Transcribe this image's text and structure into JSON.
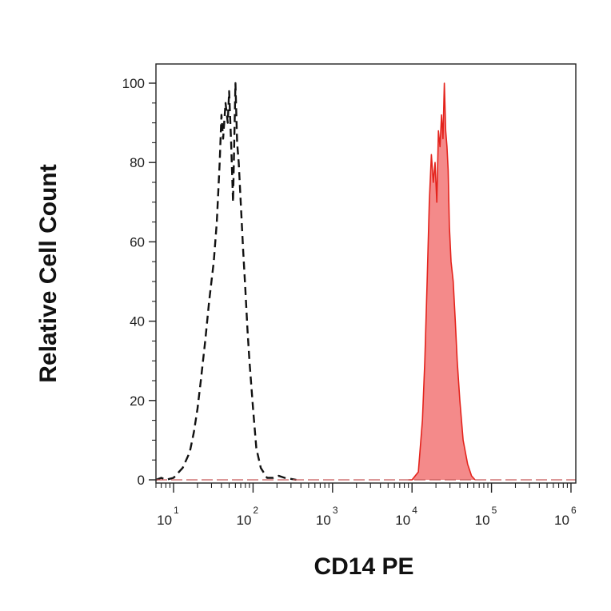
{
  "chart_data": {
    "type": "area",
    "xlabel": "CD14 PE",
    "ylabel": "Relative Cell Count",
    "x_scale": "log",
    "xlim": [
      6,
      1150000
    ],
    "ylim": [
      0,
      100
    ],
    "grid": false,
    "y_ticks": [
      {
        "value": 0,
        "label": "0"
      },
      {
        "value": 20,
        "label": "20"
      },
      {
        "value": 40,
        "label": "40"
      },
      {
        "value": 60,
        "label": "60"
      },
      {
        "value": 80,
        "label": "80"
      },
      {
        "value": 100,
        "label": "100"
      }
    ],
    "x_ticks": [
      {
        "value": 10,
        "base": "10",
        "exp": "1"
      },
      {
        "value": 100,
        "base": "10",
        "exp": "2"
      },
      {
        "value": 1000,
        "base": "10",
        "exp": "3"
      },
      {
        "value": 10000,
        "base": "10",
        "exp": "4"
      },
      {
        "value": 100000,
        "base": "10",
        "exp": "5"
      },
      {
        "value": 1000000,
        "base": "10",
        "exp": "6"
      }
    ],
    "series": [
      {
        "style": "dashed",
        "color": "#111111",
        "x": [
          6,
          7,
          8,
          10,
          13,
          16,
          18,
          20,
          22,
          25,
          28,
          32,
          35,
          38,
          40,
          42,
          45,
          48,
          50,
          53,
          56,
          60,
          63,
          66,
          70,
          75,
          80,
          85,
          90,
          100,
          110,
          125,
          150,
          180,
          210,
          250,
          350
        ],
        "y": [
          0,
          0.5,
          0,
          0.5,
          3,
          7,
          12,
          18,
          25,
          35,
          45,
          55,
          65,
          80,
          92,
          86,
          95,
          90,
          98,
          85,
          70,
          100,
          85,
          80,
          70,
          58,
          48,
          38,
          30,
          18,
          8,
          3,
          0.5,
          0.5,
          1,
          0.5,
          0
        ]
      },
      {
        "style": "filled",
        "color": "#e4231c",
        "fill": "#f48a8a",
        "x": [
          9000,
          10000,
          12000,
          13500,
          14500,
          15500,
          16500,
          17500,
          18500,
          19500,
          20500,
          21500,
          22500,
          23500,
          24500,
          25500,
          26500,
          27500,
          28500,
          29500,
          31000,
          33000,
          35000,
          37000,
          40000,
          44000,
          50000,
          56000,
          62000
        ],
        "y": [
          0,
          0,
          2,
          15,
          30,
          50,
          70,
          82,
          75,
          80,
          70,
          88,
          84,
          92,
          86,
          100,
          88,
          84,
          78,
          64,
          55,
          50,
          40,
          30,
          20,
          10,
          4,
          1,
          0
        ]
      }
    ]
  }
}
